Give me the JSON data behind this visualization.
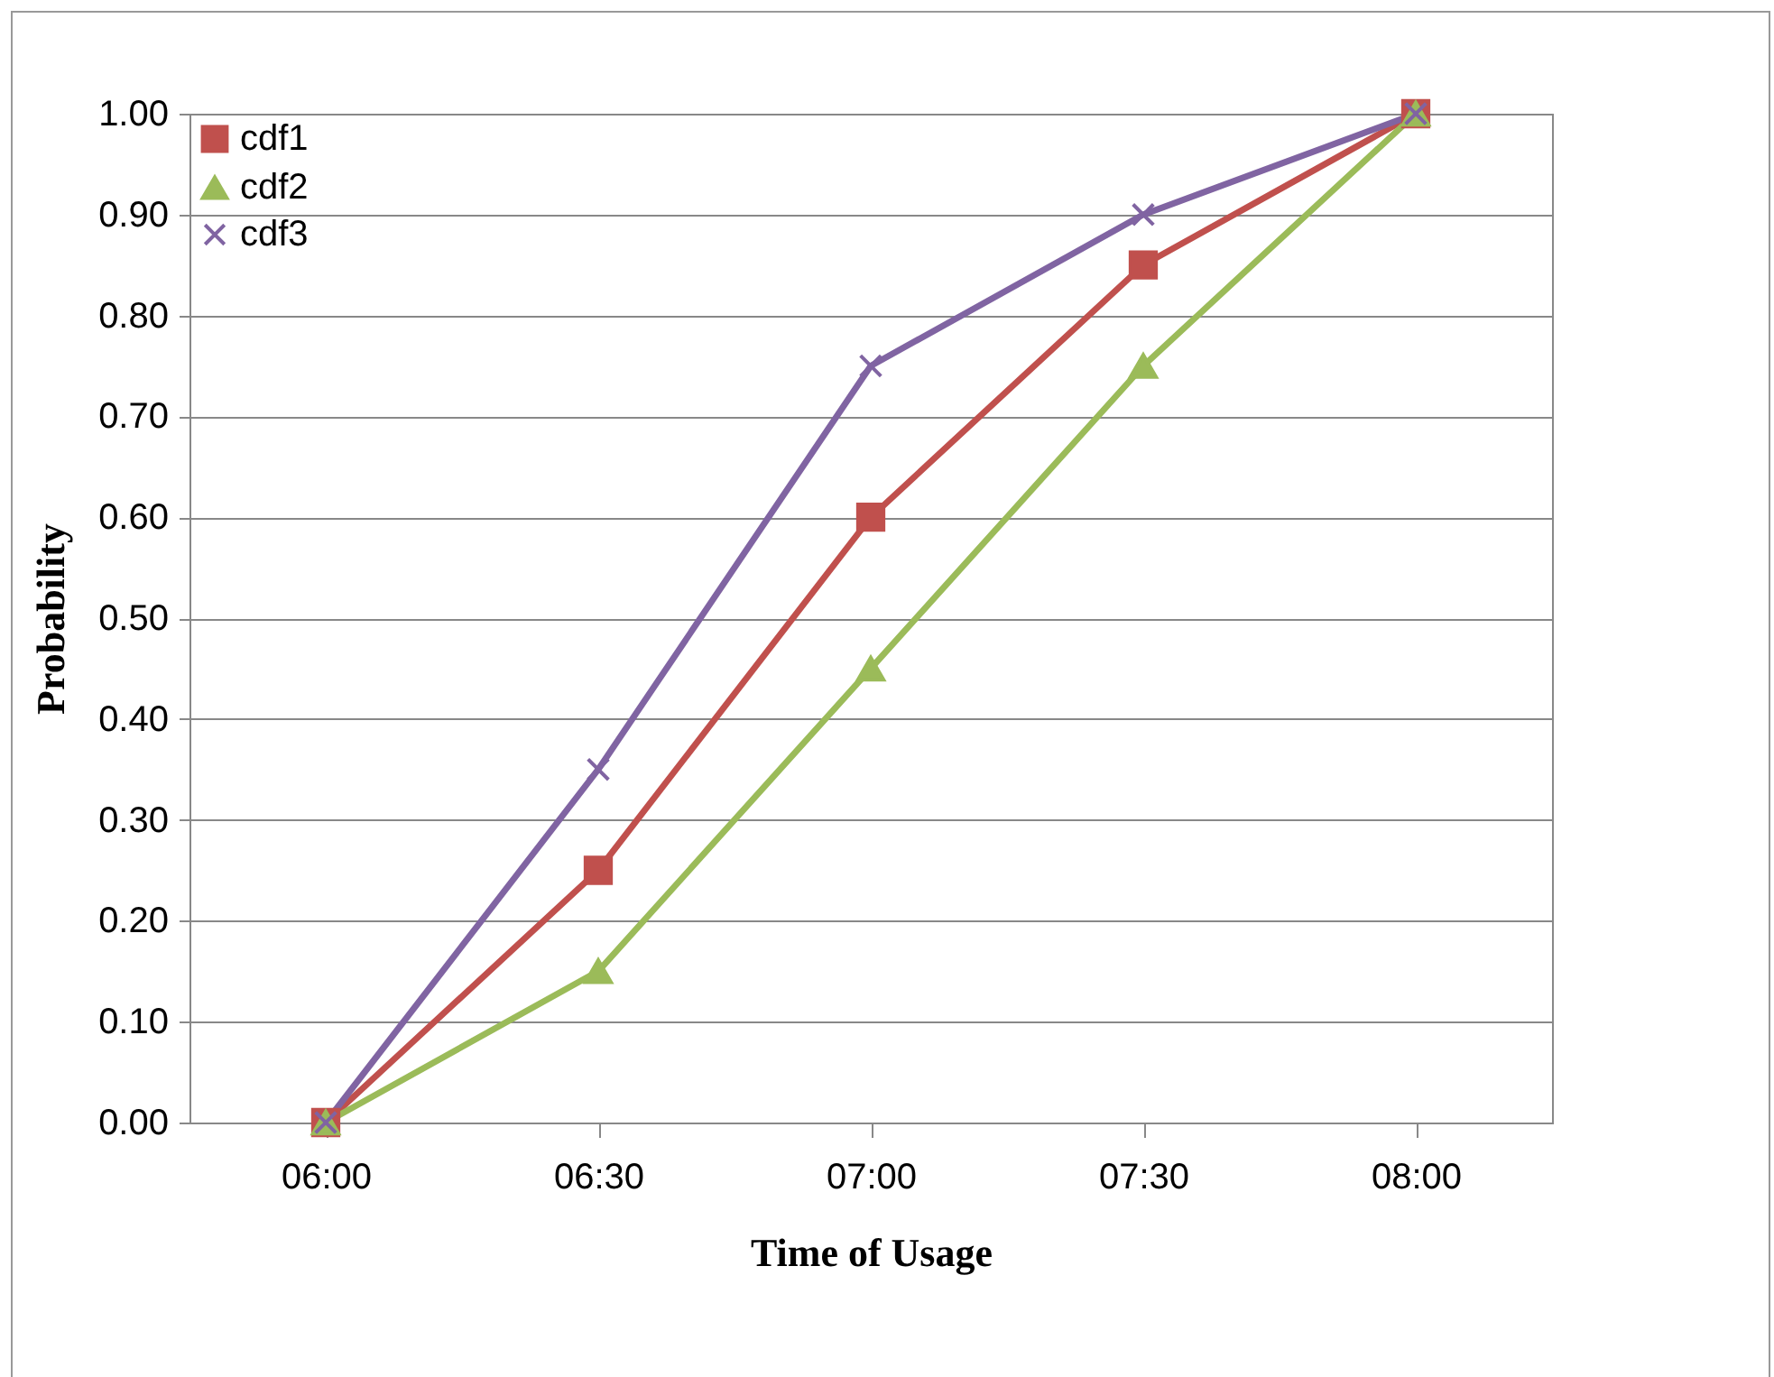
{
  "chart_data": {
    "type": "line",
    "xlabel": "Time of Usage",
    "ylabel": "Probability",
    "categories": [
      "06:00",
      "06:30",
      "07:00",
      "07:30",
      "08:00"
    ],
    "series": [
      {
        "name": "cdf1",
        "color": "#c0504d",
        "marker": "square",
        "values": [
          0,
          0.25,
          0.6,
          0.85,
          1
        ]
      },
      {
        "name": "cdf2",
        "color": "#9bbb59",
        "marker": "triangle",
        "values": [
          0,
          0.15,
          0.45,
          0.75,
          1
        ]
      },
      {
        "name": "cdf3",
        "color": "#8064a2",
        "marker": "cross",
        "values": [
          0,
          0.35,
          0.75,
          0.9,
          1
        ]
      }
    ],
    "ylim": [
      0,
      1
    ],
    "yticks": [
      {
        "value": 0,
        "label": "0.00"
      },
      {
        "value": 0.1,
        "label": "0.10"
      },
      {
        "value": 0.2,
        "label": "0.20"
      },
      {
        "value": 0.3,
        "label": "0.30"
      },
      {
        "value": 0.4,
        "label": "0.40"
      },
      {
        "value": 0.5,
        "label": "0.50"
      },
      {
        "value": 0.6,
        "label": "0.60"
      },
      {
        "value": 0.7,
        "label": "0.70"
      },
      {
        "value": 0.8,
        "label": "0.80"
      },
      {
        "value": 0.9,
        "label": "0.90"
      },
      {
        "value": 1,
        "label": "1.00"
      }
    ],
    "grid": "y",
    "legend": "top left",
    "line_style": "solid"
  }
}
